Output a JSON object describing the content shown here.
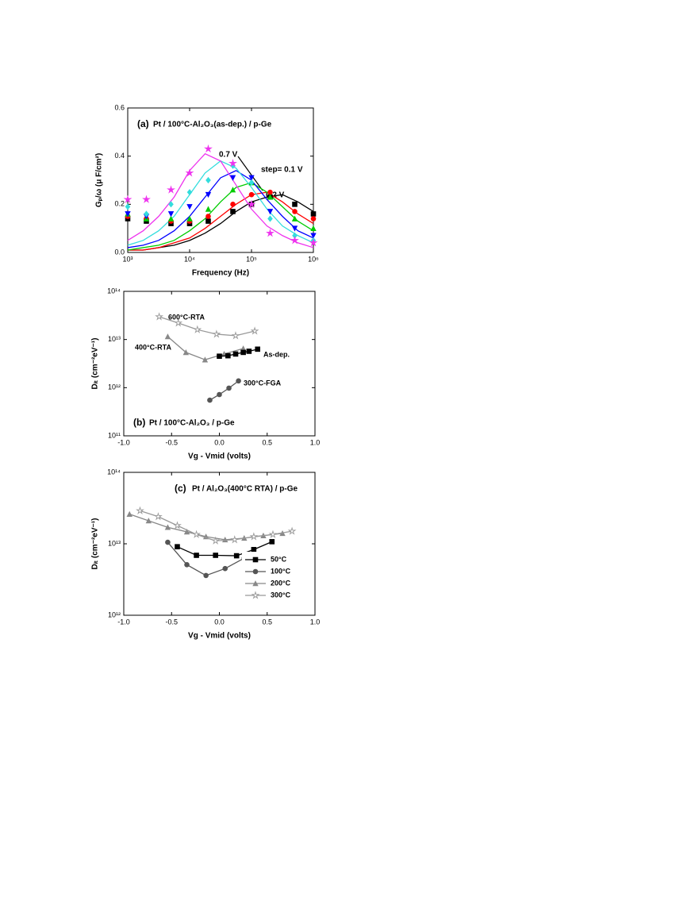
{
  "chart_data": [
    {
      "type": "scatter",
      "panel": "(a)",
      "title": "Pt / 100°C-Al₂O₃(as-dep.) / p-Ge",
      "xlabel": "Frequency (Hz)",
      "ylabel": "Gₚ/ω (μ F/cm²)",
      "xscale": "log",
      "xlim": [
        1000,
        1000000
      ],
      "xticks": [
        {
          "value": 1000,
          "label": "10³"
        },
        {
          "value": 10000,
          "label": "10⁴"
        },
        {
          "value": 100000,
          "label": "10⁵"
        },
        {
          "value": 1000000,
          "label": "10⁶"
        }
      ],
      "ylim": [
        0,
        0.6
      ],
      "yticks": [
        {
          "value": 0,
          "label": "0.0"
        },
        0.2,
        0.4,
        0.6
      ],
      "annotations": [
        "0.7 V",
        "step= 0.1 V",
        "0.2 V"
      ],
      "x": [
        1000,
        2000,
        5000,
        10000,
        20000,
        50000,
        100000,
        200000,
        500000,
        1000000
      ],
      "fit_x": [
        1000,
        1778,
        3162,
        5623,
        10000,
        17783,
        31623,
        56234,
        100000,
        177828,
        316228,
        562341,
        1000000
      ],
      "series": [
        {
          "color": "#000000",
          "marker": "square",
          "values": [
            0.14,
            0.13,
            0.12,
            0.12,
            0.13,
            0.17,
            0.2,
            0.23,
            0.2,
            0.16
          ],
          "fit": [
            0.01,
            0.01,
            0.02,
            0.03,
            0.05,
            0.08,
            0.12,
            0.17,
            0.21,
            0.23,
            0.24,
            0.21,
            0.17
          ]
        },
        {
          "color": "#ff0000",
          "marker": "circle",
          "values": [
            0.15,
            0.14,
            0.13,
            0.13,
            0.15,
            0.2,
            0.24,
            0.25,
            0.17,
            0.14
          ],
          "fit": [
            0.01,
            0.01,
            0.02,
            0.04,
            0.06,
            0.1,
            0.15,
            0.2,
            0.24,
            0.25,
            0.21,
            0.16,
            0.12
          ]
        },
        {
          "color": "#00cc00",
          "marker": "triangle",
          "values": [
            0.16,
            0.14,
            0.14,
            0.14,
            0.18,
            0.26,
            0.29,
            0.23,
            0.14,
            0.1
          ],
          "fit": [
            0.01,
            0.02,
            0.03,
            0.05,
            0.09,
            0.14,
            0.21,
            0.27,
            0.29,
            0.25,
            0.19,
            0.13,
            0.09
          ]
        },
        {
          "color": "#0000ff",
          "marker": "triangle-down",
          "values": [
            0.16,
            0.15,
            0.16,
            0.19,
            0.24,
            0.31,
            0.31,
            0.17,
            0.1,
            0.07
          ],
          "fit": [
            0.02,
            0.03,
            0.05,
            0.09,
            0.15,
            0.23,
            0.31,
            0.34,
            0.3,
            0.22,
            0.15,
            0.09,
            0.06
          ]
        },
        {
          "color": "#33dddd",
          "marker": "diamond",
          "values": [
            0.19,
            0.16,
            0.2,
            0.25,
            0.3,
            0.36,
            0.29,
            0.14,
            0.07,
            0.05
          ],
          "fit": [
            0.03,
            0.05,
            0.09,
            0.15,
            0.24,
            0.33,
            0.38,
            0.35,
            0.27,
            0.18,
            0.11,
            0.07,
            0.04
          ]
        },
        {
          "color": "#ee33ee",
          "marker": "star",
          "values": [
            0.22,
            0.22,
            0.26,
            0.33,
            0.43,
            0.37,
            0.2,
            0.08,
            0.05,
            0.04
          ],
          "fit": [
            0.05,
            0.09,
            0.15,
            0.23,
            0.34,
            0.41,
            0.38,
            0.28,
            0.18,
            0.11,
            0.07,
            0.04,
            0.02
          ]
        }
      ]
    },
    {
      "type": "line",
      "panel": "(b)",
      "title": "Pt / 100°C-Al₂O₃ / p-Ge",
      "xlabel": "Vg - Vmid (volts)",
      "ylabel": "Dᵢₜ (cm⁻²eV⁻¹)",
      "xlim": [
        -1,
        1
      ],
      "xticks": [
        {
          "value": -1,
          "label": "-1.0"
        },
        -0.5,
        {
          "value": 0,
          "label": "0.0"
        },
        0.5,
        {
          "value": 1,
          "label": "1.0"
        }
      ],
      "yscale": "log",
      "ylim": [
        100000000000.0,
        100000000000000.0
      ],
      "yticks": [
        {
          "value": 100000000000.0,
          "label": "10¹¹"
        },
        {
          "value": 1000000000000.0,
          "label": "10¹²"
        },
        {
          "value": 10000000000000.0,
          "label": "10¹³"
        },
        {
          "value": 100000000000000.0,
          "label": "10¹⁴"
        }
      ],
      "series": [
        {
          "name": "600°C-RTA",
          "color": "#999999",
          "marker": "star",
          "x": [
            -0.63,
            -0.43,
            -0.23,
            -0.03,
            0.17,
            0.37
          ],
          "values": [
            29700000000000.0,
            22000000000000.0,
            16000000000000.0,
            12900000000000.0,
            12000000000000.0,
            15000000000000.0
          ]
        },
        {
          "name": "400°C-RTA",
          "color": "#888888",
          "marker": "triangle",
          "x": [
            -0.54,
            -0.35,
            -0.15,
            0.05,
            0.25
          ],
          "values": [
            11500000000000.0,
            5400000000000.0,
            3800000000000.0,
            5000000000000.0,
            6500000000000.0
          ]
        },
        {
          "name": "As-dep.",
          "color": "#000000",
          "marker": "square",
          "x": [
            0,
            0.09,
            0.17,
            0.25,
            0.31,
            0.4
          ],
          "values": [
            4500000000000.0,
            4600000000000.0,
            5000000000000.0,
            5400000000000.0,
            5700000000000.0,
            6300000000000.0
          ]
        },
        {
          "name": "300°C-FGA",
          "color": "#555555",
          "marker": "circle",
          "x": [
            -0.1,
            0,
            0.1,
            0.2
          ],
          "values": [
            550000000000.0,
            720000000000.0,
            980000000000.0,
            1380000000000.0
          ]
        }
      ]
    },
    {
      "type": "line",
      "panel": "(c)",
      "title": "Pt / Al₂O₃(400°C RTA) / p-Ge",
      "xlabel": "Vg - Vmid (volts)",
      "ylabel": "Dᵢₜ (cm⁻²eV⁻¹)",
      "xlim": [
        -1,
        1
      ],
      "xticks": [
        {
          "value": -1,
          "label": "-1.0"
        },
        -0.5,
        {
          "value": 0,
          "label": "0.0"
        },
        0.5,
        {
          "value": 1,
          "label": "1.0"
        }
      ],
      "yscale": "log",
      "ylim": [
        1000000000000.0,
        100000000000000.0
      ],
      "yticks": [
        {
          "value": 1000000000000.0,
          "label": "10¹²"
        },
        {
          "value": 10000000000000.0,
          "label": "10¹³"
        },
        {
          "value": 100000000000000.0,
          "label": "10¹⁴"
        }
      ],
      "legend": "lower right",
      "series": [
        {
          "name": "50°C",
          "color": "#000000",
          "marker": "square",
          "x": [
            -0.44,
            -0.24,
            -0.04,
            0.18,
            0.36,
            0.55
          ],
          "values": [
            9100000000000.0,
            6900000000000.0,
            6900000000000.0,
            6800000000000.0,
            8300000000000.0,
            10700000000000.0
          ]
        },
        {
          "name": "100°C",
          "color": "#555555",
          "marker": "circle",
          "x": [
            -0.54,
            -0.34,
            -0.14,
            0.06,
            0.26
          ],
          "values": [
            10500000000000.0,
            5100000000000.0,
            3600000000000.0,
            4500000000000.0,
            6300000000000.0
          ]
        },
        {
          "name": "200°C",
          "color": "#888888",
          "marker": "triangle",
          "x": [
            -0.94,
            -0.74,
            -0.54,
            -0.34,
            -0.14,
            0.06,
            0.26,
            0.46,
            0.66
          ],
          "values": [
            26000000000000.0,
            21000000000000.0,
            17000000000000.0,
            14700000000000.0,
            12600000000000.0,
            11400000000000.0,
            12000000000000.0,
            13000000000000.0,
            14000000000000.0
          ]
        },
        {
          "name": "300°C",
          "color": "#999999",
          "marker": "star",
          "x": [
            -0.83,
            -0.64,
            -0.44,
            -0.24,
            -0.04,
            0.16,
            0.36,
            0.56,
            0.76
          ],
          "values": [
            29000000000000.0,
            24000000000000.0,
            18000000000000.0,
            13500000000000.0,
            11000000000000.0,
            11400000000000.0,
            12600000000000.0,
            13500000000000.0,
            15000000000000.0
          ]
        }
      ]
    }
  ]
}
